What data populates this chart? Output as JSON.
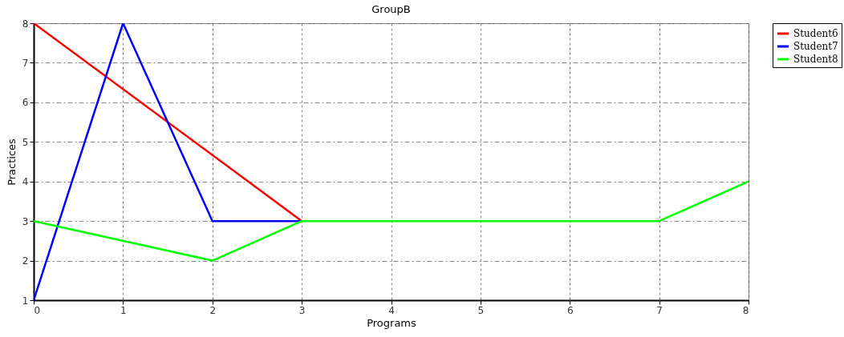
{
  "chart_data": {
    "type": "line",
    "title": "GroupB",
    "xlabel": "Programs",
    "ylabel": "Practices",
    "series": [
      {
        "name": "Student6",
        "color": "#ff0000",
        "x": [
          0,
          3
        ],
        "values": [
          8,
          3
        ]
      },
      {
        "name": "Student7",
        "color": "#0000ff",
        "x": [
          0,
          1,
          2,
          3
        ],
        "values": [
          1,
          8,
          3,
          3
        ]
      },
      {
        "name": "Student8",
        "color": "#00ff00",
        "x": [
          0,
          2,
          3,
          7,
          8
        ],
        "values": [
          3,
          2,
          3,
          3,
          4
        ]
      }
    ],
    "xlim": [
      0,
      8
    ],
    "xticks": [
      0,
      1,
      2,
      3,
      4,
      5,
      6,
      7,
      8
    ],
    "ylim": [
      1,
      8
    ],
    "yticks": [
      1,
      2,
      3,
      4,
      5,
      6,
      7,
      8
    ],
    "grid": true,
    "legend": "top right",
    "marker": "none",
    "line_style": "solid"
  }
}
